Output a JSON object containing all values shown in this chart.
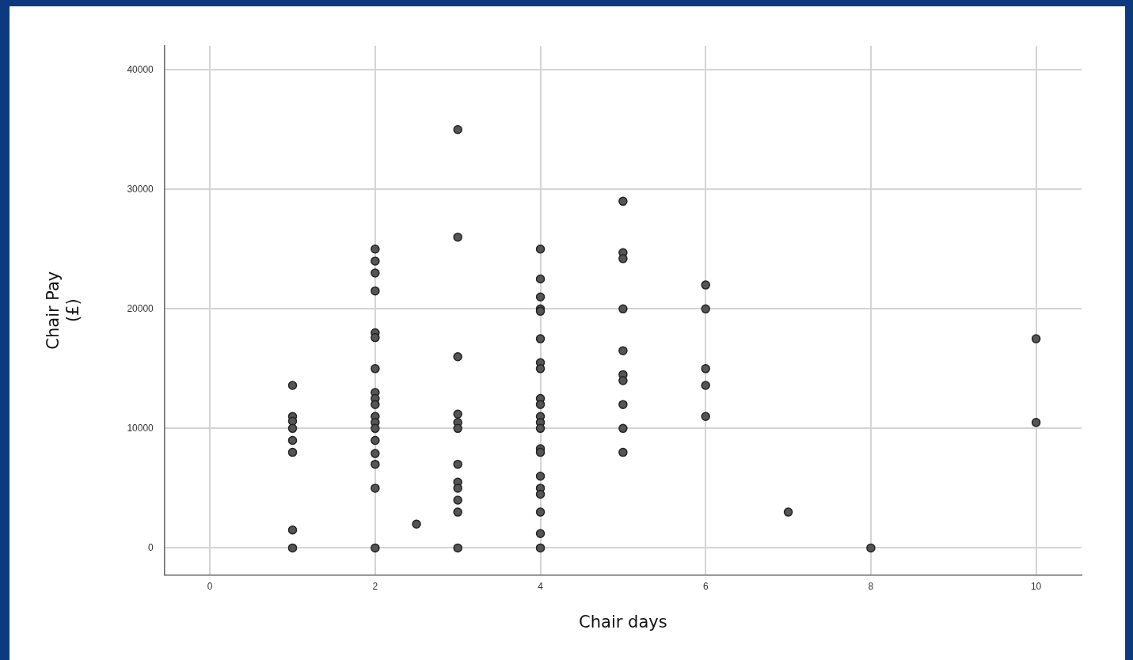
{
  "chart_data": {
    "type": "scatter",
    "xlabel": "Chair days",
    "ylabel": "Chair Pay\n(£)",
    "xlim": [
      -0.55,
      10.55
    ],
    "ylim": [
      -2250,
      42000
    ],
    "xticks": [
      0,
      2,
      4,
      6,
      8,
      10
    ],
    "yticks": [
      0,
      10000,
      20000,
      30000,
      40000
    ],
    "grid": true,
    "legend": false,
    "marker": "circle",
    "series": [
      {
        "color": "#555555",
        "x": [
          1,
          1,
          1,
          1,
          1,
          1,
          1,
          1,
          2,
          2,
          2,
          2,
          2,
          2,
          2,
          2,
          2,
          2,
          2,
          2,
          2,
          2,
          2,
          2,
          2,
          2,
          2.5,
          3,
          3,
          3,
          3,
          3,
          3,
          3,
          3,
          3,
          3,
          3,
          3,
          4,
          4,
          4,
          4,
          4,
          4,
          4,
          4,
          4,
          4,
          4,
          4,
          4,
          4,
          4,
          4,
          4,
          4,
          4,
          4,
          4,
          5,
          5,
          5,
          5,
          5,
          5,
          5,
          5,
          5,
          5,
          6,
          6,
          6,
          6,
          6,
          7,
          8,
          10,
          10
        ],
        "values": [
          13600,
          11000,
          10600,
          10000,
          9000,
          8000,
          1500,
          0,
          25000,
          24000,
          23000,
          21500,
          18000,
          17600,
          15000,
          13000,
          12500,
          12000,
          11000,
          10500,
          10000,
          9000,
          7900,
          7000,
          5000,
          0,
          2000,
          35000,
          26000,
          16000,
          11200,
          10500,
          10000,
          7000,
          5500,
          5000,
          4000,
          3000,
          0,
          25000,
          22500,
          21000,
          20000,
          19800,
          17500,
          15500,
          15000,
          12500,
          12000,
          11000,
          10500,
          10000,
          8300,
          8000,
          6000,
          5000,
          4500,
          3000,
          1200,
          0,
          29000,
          24700,
          24200,
          20000,
          16500,
          14500,
          14000,
          12000,
          10000,
          8000,
          22000,
          20000,
          15000,
          13600,
          11000,
          3000,
          0,
          17500,
          10500
        ]
      }
    ]
  }
}
